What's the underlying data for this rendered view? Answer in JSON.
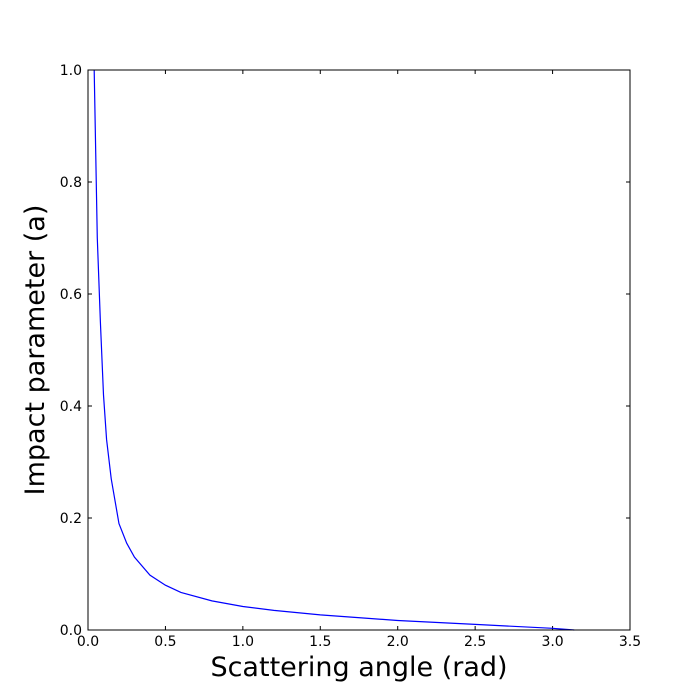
{
  "chart_data": {
    "type": "line",
    "title": "",
    "xlabel": "Scattering angle (rad)",
    "ylabel": "Impact parameter (a)",
    "xlim": [
      0.0,
      3.5
    ],
    "ylim": [
      0.0,
      1.0
    ],
    "grid": false,
    "xticks": [
      "0.0",
      "0.5",
      "1.0",
      "1.5",
      "2.0",
      "2.5",
      "3.0",
      "3.5"
    ],
    "yticks": [
      "0.0",
      "0.2",
      "0.4",
      "0.6",
      "0.8",
      "1.0"
    ],
    "series": [
      {
        "color": "#0000ff",
        "points": [
          [
            0.04,
            1.0
          ],
          [
            0.05,
            0.85
          ],
          [
            0.06,
            0.7
          ],
          [
            0.08,
            0.55
          ],
          [
            0.1,
            0.42
          ],
          [
            0.12,
            0.34
          ],
          [
            0.15,
            0.27
          ],
          [
            0.2,
            0.19
          ],
          [
            0.25,
            0.155
          ],
          [
            0.3,
            0.13
          ],
          [
            0.4,
            0.098
          ],
          [
            0.5,
            0.08
          ],
          [
            0.6,
            0.067
          ],
          [
            0.8,
            0.052
          ],
          [
            1.0,
            0.042
          ],
          [
            1.2,
            0.035
          ],
          [
            1.5,
            0.027
          ],
          [
            1.8,
            0.021
          ],
          [
            2.0,
            0.017
          ],
          [
            2.5,
            0.01
          ],
          [
            3.0,
            0.003
          ],
          [
            3.14,
            0.0
          ]
        ]
      }
    ]
  }
}
